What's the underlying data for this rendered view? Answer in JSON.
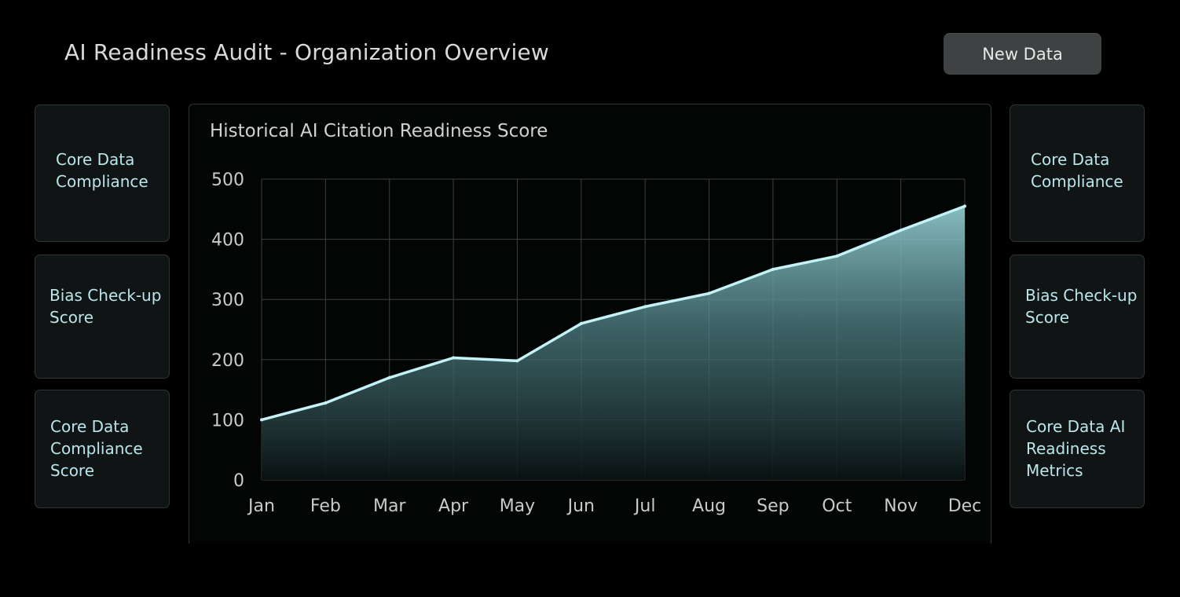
{
  "header": {
    "title": "AI Readiness Audit - Organization Overview",
    "new_data_label": "New Data"
  },
  "left_cards": [
    {
      "label": "Core Data\nCompliance"
    },
    {
      "label": "Bias Check-up\nScore"
    },
    {
      "label": "Core Data\nCompliance\nScore"
    }
  ],
  "right_cards": [
    {
      "label": "Core Data\nCompliance"
    },
    {
      "label": "Bias Check-up\nScore"
    },
    {
      "label": "Core Data AI\nReadiness\nMetrics"
    }
  ],
  "colors": {
    "background": "#000000",
    "line": "#c4f2f6",
    "fill_top": "#8ec6c9",
    "card_text": "#b9e6ea"
  },
  "chart_data": {
    "type": "area",
    "title": "Historical AI Citation Readiness Score",
    "categories": [
      "Jan",
      "Feb",
      "Mar",
      "Apr",
      "May",
      "Jun",
      "Jul",
      "Aug",
      "Sep",
      "Oct",
      "Nov",
      "Dec"
    ],
    "values": [
      100,
      128,
      170,
      203,
      198,
      260,
      288,
      310,
      350,
      372,
      415,
      455
    ],
    "ylim": [
      0,
      500
    ],
    "yticks": [
      0,
      100,
      200,
      300,
      400,
      500
    ],
    "grid": true
  }
}
